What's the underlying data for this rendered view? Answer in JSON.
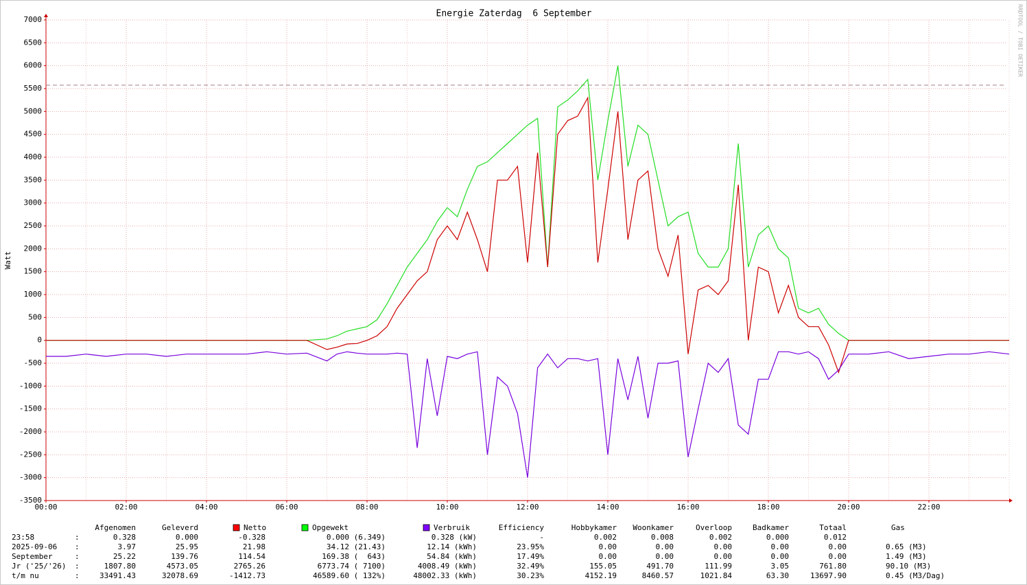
{
  "chart_data": {
    "type": "line",
    "title": "Energie Zaterdag  6 September",
    "y_label": "Watt",
    "side_text": "RRDTOOL / TOBI OETIKER",
    "xlim": [
      0,
      24
    ],
    "xticks": [
      {
        "value": 0,
        "label": "00:00"
      },
      {
        "value": 2,
        "label": "02:00"
      },
      {
        "value": 4,
        "label": "04:00"
      },
      {
        "value": 6,
        "label": "06:00"
      },
      {
        "value": 8,
        "label": "08:00"
      },
      {
        "value": 10,
        "label": "10:00"
      },
      {
        "value": 12,
        "label": "12:00"
      },
      {
        "value": 14,
        "label": "14:00"
      },
      {
        "value": 16,
        "label": "16:00"
      },
      {
        "value": 18,
        "label": "18:00"
      },
      {
        "value": 20,
        "label": "20:00"
      },
      {
        "value": 22,
        "label": "22:00"
      }
    ],
    "ylim": [
      -3500,
      7000
    ],
    "yticks": [
      -3500,
      -3000,
      -2500,
      -2000,
      -1500,
      -1000,
      -500,
      0,
      500,
      1000,
      1500,
      2000,
      2500,
      3000,
      3500,
      4000,
      4500,
      5000,
      5500,
      6000,
      6500,
      7000
    ],
    "grid": true,
    "reference_line": 5575,
    "x": [
      0,
      0.5,
      1,
      1.5,
      2,
      2.5,
      3,
      3.5,
      4,
      4.5,
      5,
      5.5,
      6,
      6.5,
      7,
      7.25,
      7.5,
      7.75,
      8,
      8.25,
      8.5,
      8.75,
      9,
      9.25,
      9.5,
      9.75,
      10,
      10.25,
      10.5,
      10.75,
      11,
      11.25,
      11.5,
      11.75,
      12,
      12.25,
      12.5,
      12.75,
      13,
      13.25,
      13.5,
      13.75,
      14,
      14.25,
      14.5,
      14.75,
      15,
      15.25,
      15.5,
      15.75,
      16,
      16.25,
      16.5,
      16.75,
      17,
      17.25,
      17.5,
      17.75,
      18,
      18.25,
      18.5,
      18.75,
      19,
      19.25,
      19.5,
      19.75,
      20,
      20.5,
      21,
      21.5,
      22,
      22.5,
      23,
      23.5,
      24
    ],
    "series": [
      {
        "name": "Opgewekt",
        "color": "#22dd22",
        "swatch": "#00ff00",
        "values": [
          0,
          0,
          0,
          0,
          0,
          0,
          0,
          0,
          0,
          0,
          0,
          0,
          0,
          0,
          30,
          100,
          200,
          250,
          300,
          450,
          800,
          1200,
          1600,
          1900,
          2200,
          2600,
          2900,
          2700,
          3300,
          3800,
          3900,
          4100,
          4300,
          4500,
          4700,
          4850,
          1600,
          5100,
          5250,
          5450,
          5700,
          3500,
          4800,
          6000,
          3800,
          4700,
          4500,
          3500,
          2500,
          2700,
          2800,
          1900,
          1600,
          1600,
          2000,
          4300,
          1600,
          2300,
          2500,
          2000,
          1800,
          700,
          600,
          700,
          350,
          150,
          0,
          0,
          0,
          0,
          0,
          0,
          0,
          0,
          0
        ]
      },
      {
        "name": "Netto",
        "color": "#cc0000",
        "swatch": "#ff0000",
        "values": [
          0,
          0,
          0,
          0,
          0,
          0,
          0,
          0,
          0,
          0,
          0,
          0,
          0,
          0,
          -200,
          -150,
          -80,
          -70,
          0,
          100,
          300,
          700,
          1000,
          1300,
          1500,
          2200,
          2500,
          2200,
          2800,
          2200,
          1500,
          3500,
          3500,
          3800,
          1700,
          4100,
          1600,
          4500,
          4800,
          4900,
          5300,
          1700,
          3300,
          5000,
          2200,
          3500,
          3700,
          2000,
          1400,
          2300,
          -300,
          1100,
          1200,
          1000,
          1300,
          3400,
          0,
          1600,
          1500,
          600,
          1200,
          500,
          300,
          300,
          -100,
          -700,
          0,
          0,
          0,
          0,
          0,
          0,
          0,
          0,
          0
        ]
      },
      {
        "name": "Verbruik",
        "color": "#7700dd",
        "swatch": "#7f00ff",
        "values": [
          -350,
          -350,
          -300,
          -350,
          -300,
          -300,
          -350,
          -300,
          -300,
          -300,
          -300,
          -250,
          -300,
          -280,
          -450,
          -300,
          -250,
          -280,
          -300,
          -300,
          -300,
          -280,
          -300,
          -2350,
          -400,
          -1650,
          -350,
          -400,
          -300,
          -250,
          -2500,
          -800,
          -1000,
          -1600,
          -3000,
          -600,
          -300,
          -600,
          -400,
          -400,
          -450,
          -400,
          -2500,
          -400,
          -1300,
          -350,
          -1700,
          -500,
          -500,
          -450,
          -2550,
          -1500,
          -500,
          -700,
          -400,
          -1850,
          -2050,
          -850,
          -850,
          -250,
          -250,
          -300,
          -250,
          -400,
          -850,
          -650,
          -300,
          -300,
          -250,
          -400,
          -350,
          -300,
          -300,
          -250,
          -300
        ]
      }
    ],
    "table": {
      "headers": [
        "Afgenomen",
        "Geleverd",
        "Efficiency",
        "Hobbykamer",
        "Woonkamer",
        "Overloop",
        "Badkamer",
        "Totaal",
        "Gas"
      ],
      "rows": [
        [
          "23:58",
          ":",
          "0.328",
          "0.000",
          "-0.328",
          "0.000 (6.349)",
          "0.328 (kW)",
          "-",
          "0.002",
          "0.008",
          "0.002",
          "0.000",
          "0.012"
        ],
        [
          "2025-09-06",
          ":",
          "3.97",
          "25.95",
          "21.98",
          "34.12 (21.43)",
          "12.14 (kWh)",
          "23.95%",
          "0.00",
          "0.00",
          "0.00",
          "0.00",
          "0.00",
          "0.65 (M3)"
        ],
        [
          "September",
          ":",
          "25.22",
          "139.76",
          "114.54",
          "169.38 (  643)",
          "54.84 (kWh)",
          "17.49%",
          "0.00",
          "0.00",
          "0.00",
          "0.00",
          "0.00",
          "1.49 (M3)"
        ],
        [
          "Jr ('25/'26)",
          ":",
          "1807.80",
          "4573.05",
          "2765.26",
          "6773.74 ( 7100)",
          "4008.49 (kWh)",
          "32.49%",
          "155.05",
          "491.70",
          "111.99",
          "3.05",
          "761.80",
          "90.10 (M3)"
        ],
        [
          "t/m nu",
          ":",
          "33491.43",
          "32078.69",
          "-1412.73",
          "46589.60 ( 132%)",
          "48002.33 (kWh)",
          "30.23%",
          "4152.19",
          "8460.57",
          "1021.84",
          "63.30",
          "13697.90",
          "0.45 (M3/Dag)"
        ]
      ]
    }
  }
}
